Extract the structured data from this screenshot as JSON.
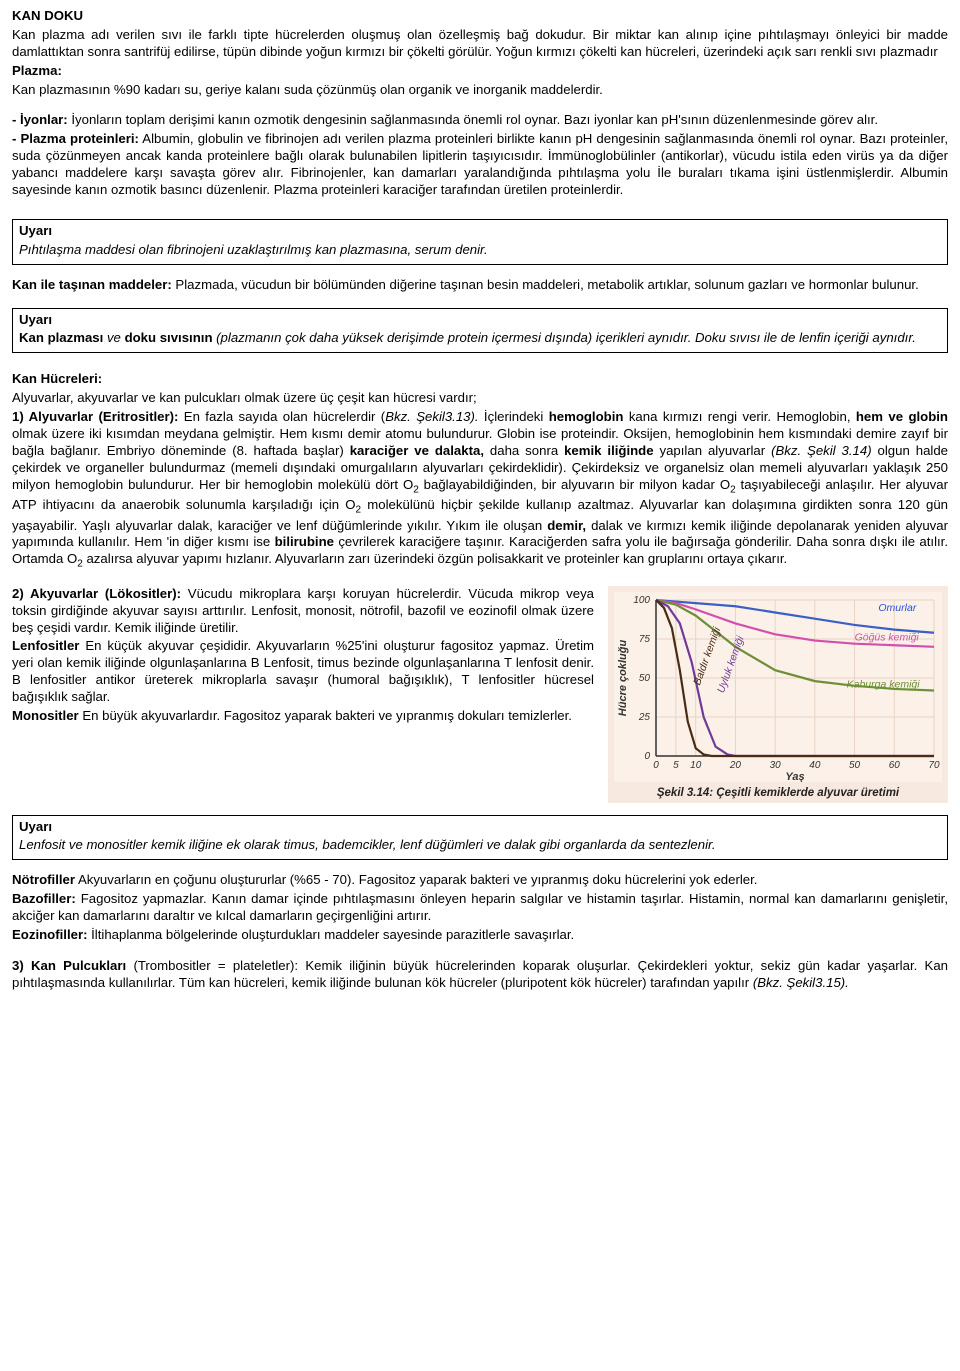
{
  "title": "KAN DOKU",
  "intro_p1": "Kan plazma adı verilen sıvı ile farklı tipte hücrelerden oluşmuş olan özelleşmiş bağ dokudur. Bir miktar kan alınıp içine pıhtılaşmayı önleyici bir madde damlattıktan sonra santrifüj edilirse, tüpün dibinde yoğun kırmızı bir çökelti görülür. Yoğun kırmızı çökelti kan hücreleri, üzerindeki açık sarı renkli sıvı plazmadır",
  "plazma_label": "Plazma:",
  "plazma_text": "Kan plazmasının %90 kadarı su, geriye kalanı suda çözünmüş olan organik ve inorganik maddelerdir.",
  "iyonlar_label": "- İyonlar:",
  "iyonlar_text": " İyonların toplam derişimi kanın ozmotik dengesinin sağlanmasında önemli rol oynar. Bazı iyonlar kan pH'sının düzenlenmesinde görev alır.",
  "plazma_prot_label": "- Plazma proteinleri:",
  "plazma_prot_text": " Albumin, globulin ve fibrinojen adı verilen plazma proteinleri birlikte kanın pH dengesinin sağlanmasında önemli rol oynar. Bazı proteinler, suda çözünmeyen ancak kanda proteinlere bağlı olarak bulunabilen lipitlerin taşıyıcısıdır. İmmünoglobülinler (antikorlar), vücudu istila eden virüs ya da diğer yabancı maddelere karşı savaşta görev alır. Fibrinojenler, kan damarları yaralandığında pıhtılaşma yolu İle buraları tıkama işini üstlenmişlerdir. Albumin sayesinde kanın ozmotik basıncı düzenlenir. Plazma proteinleri karaciğer tarafından üretilen proteinlerdir.",
  "uyari_label": "Uyarı",
  "uyari1_text": "Pıhtılaşma maddesi olan fibrinojeni uzaklaştırılmış kan plazmasına, serum denir.",
  "tasinan_label": "Kan ile taşınan maddeler:",
  "tasinan_text": " Plazmada, vücudun bir bölümünden diğerine taşınan besin maddeleri, metabolik artıklar, solunum gazları ve hormonlar bulunur.",
  "uyari2_pre": "Kan plazması",
  "uyari2_mid": " ve ",
  "uyari2_bold2": "doku sıvısının",
  "uyari2_rest": " (plazmanın çok daha yüksek derişimde protein içermesi dışında) içerikleri aynıdır. Doku sıvısı ile de lenfin içeriği aynıdır.",
  "hucreler_label": "Kan Hücreleri:",
  "hucreler_intro": "Alyuvarlar, akyuvarlar ve kan pulcukları olmak üzere üç çeşit kan hücresi vardır;",
  "alyuvar_label": "1) Alyuvarlar (Eritrositler):",
  "alyuvar_1": " En fazla sayıda olan hücrelerdir (",
  "alyuvar_bkz1": "Bkz. Şekil3.13).",
  "alyuvar_2": " İçlerindeki ",
  "alyuvar_hemo": "hemoglobin",
  "alyuvar_3": " kana kırmızı rengi verir. Hemoglobin, ",
  "alyuvar_hem": "hem ve globin",
  "alyuvar_4": " olmak üzere iki kısımdan meydana gelmiştir. Hem kısmı demir atomu bulundurur. Globin ise proteindir. Oksijen, hemoglobinin hem kısmındaki demire zayıf bir bağla bağlanır. Embriyo döneminde (8. haftada başlar) ",
  "alyuvar_karaciger": "karaciğer ve dalakta,",
  "alyuvar_5": " daha sonra ",
  "alyuvar_kemik": "kemik iliğinde",
  "alyuvar_6": " yapılan alyuvarlar ",
  "alyuvar_bkz2": "(Bkz. Şekil 3.14)",
  "alyuvar_7": " olgun halde çekirdek ve organeller bulundurmaz (memeli dışındaki omurgalıların alyuvarları çekirdeklidir). Çekirdeksiz ve organelsiz olan memeli alyuvarları yaklaşık 250 milyon hemoglobin bulundurur. Her bir hemoglobin molekülü dört O",
  "alyuvar_8": " bağlayabildiğinden, bir alyuvarın bir milyon kadar O",
  "alyuvar_9": " taşıyabileceği anlaşılır. Her alyuvar ATP ihtiyacını da anaerobik solunumla karşıladığı için O",
  "alyuvar_10": " molekülünü hiçbir şekilde kullanıp azaltmaz. Alyuvarlar kan dolaşımına girdikten sonra 120 gün yaşayabilir. Yaşlı alyuvarlar dalak, karaciğer ve lenf düğümlerinde yıkılır. Yıkım ile oluşan ",
  "alyuvar_demir": "demir,",
  "alyuvar_11": " dalak ve kırmızı kemik iliğinde depolanarak yeniden alyuvar yapımında kullanılır. Hem 'in diğer kısmı ise ",
  "alyuvar_bili": "bilirubine",
  "alyuvar_12": " çevrilerek karaciğere taşınır. Karaciğerden safra yolu ile bağırsağa gönderilir. Daha sonra dışkı ile atılır. Ortamda O",
  "alyuvar_13": " azalırsa alyuvar yapımı hızlanır. Alyuvarların zarı üzerindeki özgün polisakkarit ve proteinler kan gruplarını ortaya çıkarır.",
  "sub2": "2",
  "akyuvar_label": "2) Akyuvarlar (Lökositler):",
  "akyuvar_1": " Vücudu mikroplara karşı koruyan hücrelerdir. Vücuda mikrop veya toksin girdiğinde akyuvar sayısı arttırılır. Lenfosit, monosit, nötrofil, bazofil ve eozinofil olmak üzere beş çeşidi vardır. Kemik iliğinde üretilir.",
  "lenfo_label": "Lenfositler",
  "lenfo_text": " En küçük akyuvar çeşididir. Akyuvarların %25'ini oluşturur fagositoz yapmaz. Üretim yeri olan kemik iliğinde olgunlaşanlarına B Lenfosit, timus bezinde olgunlaşanlarına T lenfosit denir. B lenfositler antikor üreterek mikroplarla savaşır (humoral bağışıklık), T lenfositler hücresel bağışıklık sağlar.",
  "mono_label": "Monositler",
  "mono_text": " En büyük akyuvarlardır. Fagositoz yaparak bakteri ve yıpranmış dokuları temizlerler.",
  "uyari3_text": "Lenfosit ve monositler kemik iliğine ek olarak timus, bademcikler, lenf düğümleri ve dalak gibi organlarda da sentezlenir.",
  "notro_label": "Nötrofiller",
  "notro_text": " Akyuvarların en çoğunu oluştururlar (%65 - 70). Fagositoz yaparak bakteri ve yıpranmış doku hücrelerini yok ederler.",
  "bazo_label": "Bazofiller:",
  "bazo_text": " Fagositoz yapmazlar. Kanın damar içinde pıhtılaşmasını önleyen heparin salgılar ve histamin taşırlar. Histamin, normal kan damarlarını genişletir, akciğer kan damarlarını daraltır ve kılcal damarların geçirgenliğini artırır.",
  "eozi_label": "Eozinofiller:",
  "eozi_text": " İltihaplanma bölgelerinde oluşturdukları maddeler sayesinde parazitlerle savaşırlar.",
  "pulcuk_label": "3) Kan Pulcukları",
  "pulcuk_sub": " (Trombositler = plateletler):",
  "pulcuk_text": " Kemik iliğinin büyük hücrelerinden koparak oluşurlar. Çekirdekleri yoktur, sekiz gün kadar yaşarlar. Kan pıhtılaşmasında kullanılırlar. Tüm kan hücreleri, kemik iliğinde bulunan kök hücreler (pluripotent kök hücreler) tarafından yapılır ",
  "pulcuk_bkz": "(Bkz. Şekil3.15).",
  "chart": {
    "caption": "Şekil 3.14: Çeşitli kemiklerde alyuvar üretimi",
    "bg": "#fbf1e8",
    "grid_color": "#e9d4c5",
    "axis_color": "#333333",
    "text_color": "#333333",
    "font_size_tick": 10,
    "font_size_axis": 11,
    "xlabel": "Yaş",
    "ylabel": "Hücre çokluğu",
    "xlim": [
      0,
      70
    ],
    "ylim": [
      0,
      100
    ],
    "xticks": [
      0,
      5,
      10,
      20,
      30,
      40,
      50,
      60,
      70
    ],
    "yticks": [
      0,
      25,
      50,
      75,
      100
    ],
    "series": [
      {
        "name": "Omurlar",
        "color": "#3b5fc4",
        "label_color": "#2a52d6",
        "label": "Omurlar",
        "label_x": 56,
        "label_y": 93,
        "points": [
          [
            0,
            100
          ],
          [
            5,
            99
          ],
          [
            10,
            98
          ],
          [
            20,
            96
          ],
          [
            30,
            92
          ],
          [
            40,
            88
          ],
          [
            50,
            84
          ],
          [
            60,
            81
          ],
          [
            70,
            79
          ]
        ]
      },
      {
        "name": "Gogus",
        "color": "#d24fae",
        "label_color": "#d24fae",
        "label": "Göğüs kemiği",
        "label_x": 50,
        "label_y": 74,
        "points": [
          [
            0,
            100
          ],
          [
            5,
            98
          ],
          [
            10,
            94
          ],
          [
            20,
            85
          ],
          [
            30,
            78
          ],
          [
            40,
            74
          ],
          [
            50,
            72
          ],
          [
            60,
            71
          ],
          [
            70,
            70
          ]
        ]
      },
      {
        "name": "Kaburga",
        "color": "#6d8f36",
        "label_color": "#6d8f36",
        "label": "Kaburga kemiği",
        "label_x": 48,
        "label_y": 44,
        "points": [
          [
            0,
            100
          ],
          [
            5,
            97
          ],
          [
            10,
            90
          ],
          [
            20,
            70
          ],
          [
            30,
            55
          ],
          [
            40,
            48
          ],
          [
            50,
            45
          ],
          [
            60,
            43
          ],
          [
            70,
            42
          ]
        ]
      },
      {
        "name": "Uyluk",
        "color": "#6f3a98",
        "label_color": "#6f3a98",
        "label": "Uyluk kemiği",
        "label_x": 17,
        "label_y": 40,
        "label_rot": -70,
        "points": [
          [
            0,
            100
          ],
          [
            3,
            96
          ],
          [
            6,
            85
          ],
          [
            9,
            60
          ],
          [
            12,
            25
          ],
          [
            15,
            6
          ],
          [
            18,
            1
          ],
          [
            20,
            0
          ],
          [
            70,
            0
          ]
        ]
      },
      {
        "name": "Baldir",
        "color": "#4a2b14",
        "label_color": "#4a2b14",
        "label": "Baldır kemiği",
        "label_x": 11,
        "label_y": 45,
        "label_rot": -70,
        "points": [
          [
            0,
            100
          ],
          [
            2,
            95
          ],
          [
            4,
            82
          ],
          [
            6,
            55
          ],
          [
            8,
            22
          ],
          [
            10,
            5
          ],
          [
            12,
            1
          ],
          [
            14,
            0
          ],
          [
            70,
            0
          ]
        ]
      }
    ]
  }
}
